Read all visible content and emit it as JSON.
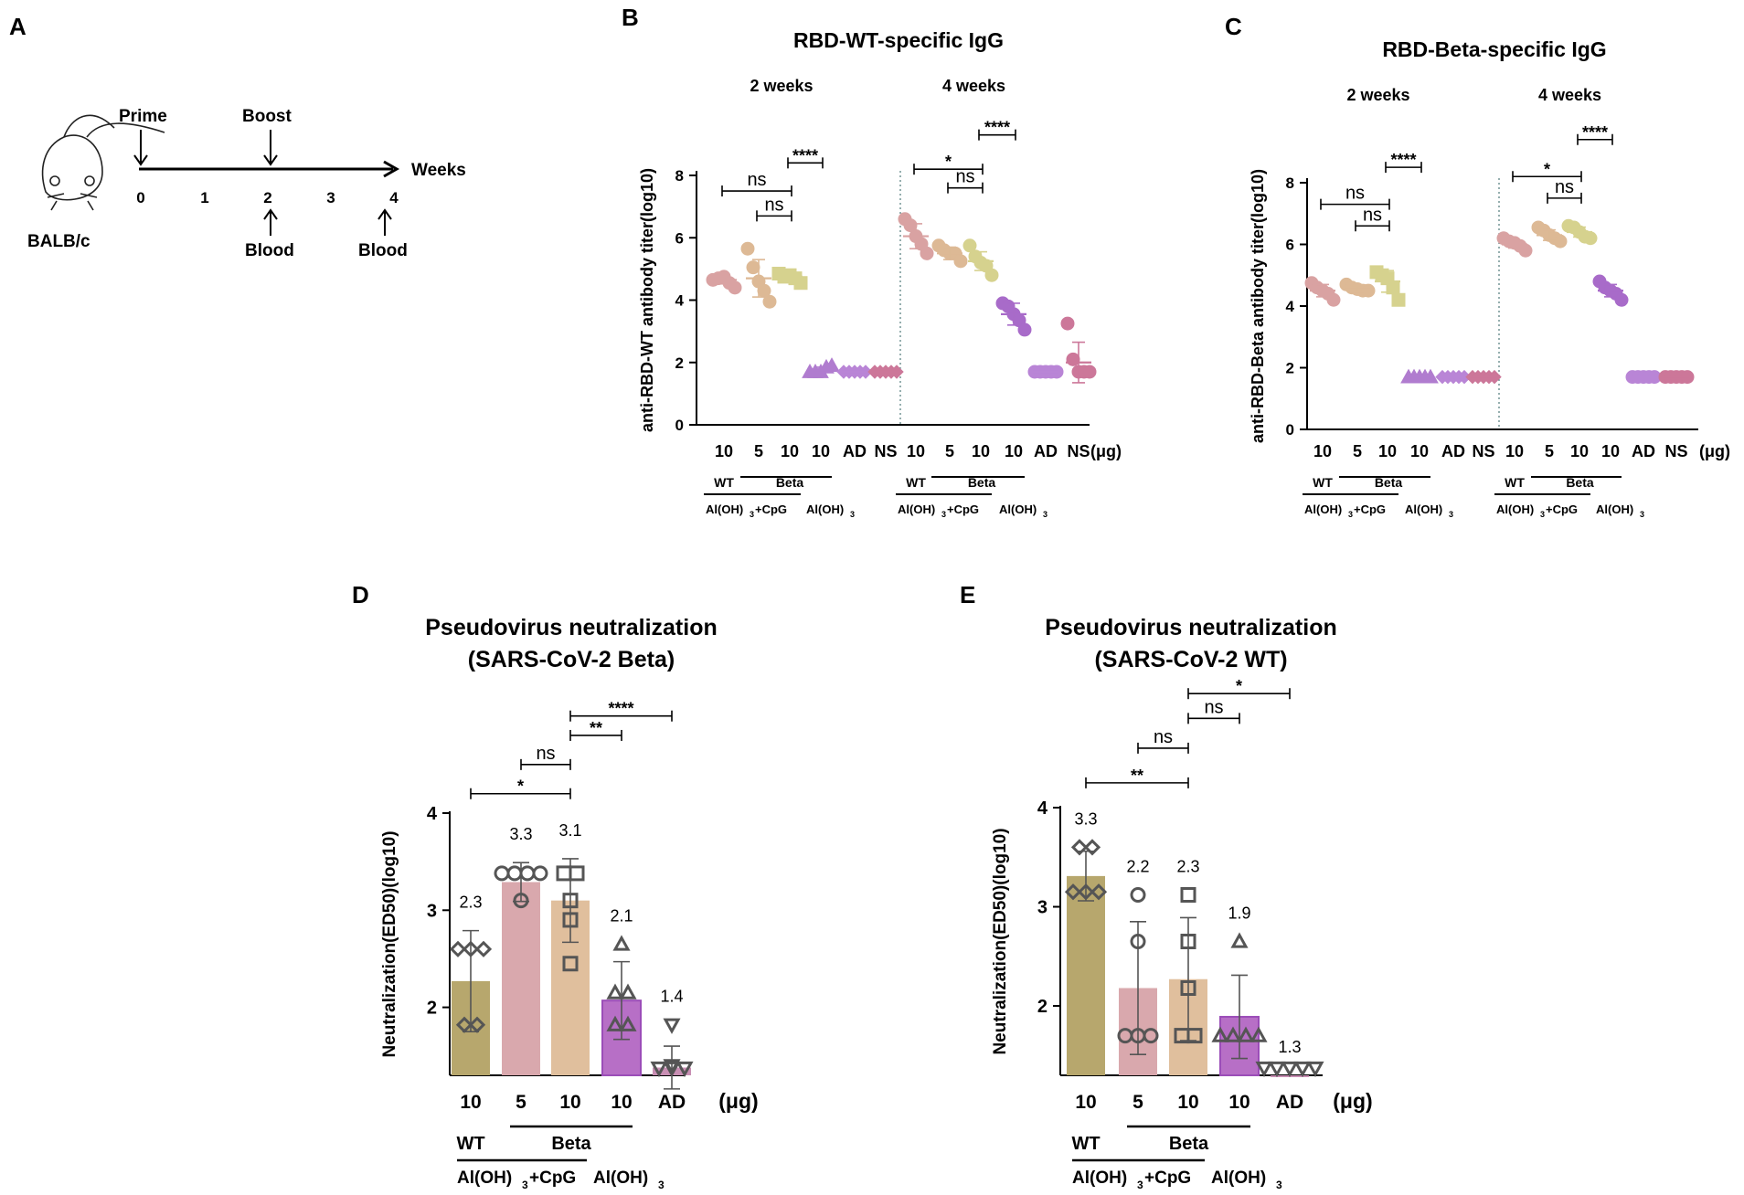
{
  "panels": {
    "A": {
      "letter": "A",
      "strain": "BALB/c",
      "prime": "Prime",
      "boost": "Boost",
      "axis_label": "Weeks",
      "ticks": [
        "0",
        "1",
        "2",
        "3",
        "4"
      ],
      "blood": "Blood"
    }
  },
  "chart_data": [
    {
      "panel": "B",
      "type": "scatter",
      "title": "RBD-WT-specific IgG",
      "ylabel": "anti-RBD-WT antibody titer(log10)",
      "ylim": [
        0,
        8
      ],
      "yticks": [
        "0",
        "2",
        "4",
        "6",
        "8"
      ],
      "unit": "(μg)",
      "groups": [
        {
          "name": "2 weeks",
          "doses": [
            "10",
            "5",
            "10",
            "10",
            "AD",
            "NS"
          ],
          "labels": {
            "wt": "WT",
            "beta": "Beta",
            "adj1": "Al(OH)",
            "adj1b": "+CpG",
            "adj2": "Al(OH)"
          },
          "series": [
            {
              "name": "WT 10 Al(OH)3+CpG",
              "color": "#d9a2a2",
              "marker": "circle",
              "points": [
                4.65,
                4.7,
                4.75,
                4.55,
                4.4
              ],
              "mean": 4.65,
              "sd": 0.13
            },
            {
              "name": "Beta 5 Al(OH)3+CpG",
              "color": "#ddb995",
              "marker": "circle",
              "points": [
                5.65,
                5.05,
                4.6,
                4.3,
                3.95
              ],
              "mean": 4.7,
              "sd": 0.6
            },
            {
              "name": "Beta 10 Al(OH)3+CpG",
              "color": "#d6d28e",
              "marker": "square",
              "points": [
                4.85,
                4.75,
                4.8,
                4.7,
                4.55
              ],
              "mean": 4.75,
              "sd": 0.12
            },
            {
              "name": "Beta 10 Al(OH)3",
              "color": "#b07ccf",
              "marker": "triangle",
              "points": [
                1.7,
                1.7,
                1.7,
                1.85,
                1.9
              ],
              "mean": 1.77,
              "sd": 0.08
            },
            {
              "name": "AD",
              "color": "#b985d6",
              "marker": "diamond",
              "points": [
                1.7,
                1.7,
                1.7,
                1.7,
                1.7
              ],
              "mean": 1.7,
              "sd": 0
            },
            {
              "name": "NS",
              "color": "#cc7799",
              "marker": "diamond",
              "points": [
                1.7,
                1.7,
                1.7,
                1.7,
                1.7
              ],
              "mean": 1.7,
              "sd": 0
            }
          ],
          "sig": [
            {
              "text": "ns",
              "from": 0,
              "to": 2,
              "y": 7.5
            },
            {
              "text": "ns",
              "from": 1,
              "to": 2,
              "y": 6.7
            },
            {
              "text": "****",
              "from": 2,
              "to": 3,
              "y": 8.4
            }
          ]
        },
        {
          "name": "4 weeks",
          "doses": [
            "10",
            "5",
            "10",
            "10",
            "AD",
            "NS"
          ],
          "labels": {
            "wt": "WT",
            "beta": "Beta",
            "adj1": "Al(OH)",
            "adj1b": "+CpG",
            "adj2": "Al(OH)"
          },
          "series": [
            {
              "name": "WT 10 Al(OH)3+CpG",
              "color": "#d9a2a2",
              "marker": "circle",
              "points": [
                6.6,
                6.4,
                6.05,
                5.8,
                5.5
              ],
              "mean": 6.05,
              "sd": 0.4
            },
            {
              "name": "Beta 5 Al(OH)3+CpG",
              "color": "#ddb995",
              "marker": "circle",
              "points": [
                5.75,
                5.6,
                5.5,
                5.5,
                5.25
              ],
              "mean": 5.5,
              "sd": 0.2
            },
            {
              "name": "Beta 10 Al(OH)3+CpG",
              "color": "#d6d28e",
              "marker": "circle",
              "points": [
                5.75,
                5.4,
                5.2,
                5.1,
                4.8
              ],
              "mean": 5.25,
              "sd": 0.3
            },
            {
              "name": "Beta 10 Al(OH)3",
              "color": "#a86bc9",
              "marker": "circle",
              "points": [
                3.9,
                3.8,
                3.55,
                3.35,
                3.05
              ],
              "mean": 3.55,
              "sd": 0.35
            },
            {
              "name": "AD",
              "color": "#b985d6",
              "marker": "circle",
              "points": [
                1.7,
                1.7,
                1.7,
                1.7,
                1.7
              ],
              "mean": 1.7,
              "sd": 0
            },
            {
              "name": "NS",
              "color": "#cc7799",
              "marker": "circle",
              "points": [
                3.25,
                2.1,
                1.7,
                1.7,
                1.7
              ],
              "mean": 2.0,
              "sd": 0.65
            }
          ],
          "sig": [
            {
              "text": "*",
              "from": 0,
              "to": 2,
              "y": 8.2
            },
            {
              "text": "ns",
              "from": 1,
              "to": 2,
              "y": 7.6
            },
            {
              "text": "****",
              "from": 2,
              "to": 3,
              "y": 9.3
            }
          ]
        }
      ]
    },
    {
      "panel": "C",
      "type": "scatter",
      "title": "RBD-Beta-specific IgG",
      "ylabel": "anti-RBD-Beta antibody titer(log10)",
      "ylim": [
        0,
        8
      ],
      "yticks": [
        "0",
        "2",
        "4",
        "6",
        "8"
      ],
      "unit": "(μg)",
      "groups": [
        {
          "name": "2 weeks",
          "doses": [
            "10",
            "5",
            "10",
            "10",
            "AD",
            "NS"
          ],
          "labels": {
            "wt": "WT",
            "beta": "Beta",
            "adj1": "Al(OH)",
            "adj1b": "+CpG",
            "adj2": "Al(OH)"
          },
          "series": [
            {
              "name": "WT 10 Al(OH)3+CpG",
              "color": "#d9a2a2",
              "marker": "circle",
              "points": [
                4.75,
                4.6,
                4.5,
                4.4,
                4.2
              ],
              "mean": 4.5,
              "sd": 0.2
            },
            {
              "name": "Beta 5 Al(OH)3+CpG",
              "color": "#ddb995",
              "marker": "circle",
              "points": [
                4.7,
                4.6,
                4.55,
                4.5,
                4.5
              ],
              "mean": 4.55,
              "sd": 0.1
            },
            {
              "name": "Beta 10 Al(OH)3+CpG",
              "color": "#d6d28e",
              "marker": "square",
              "points": [
                5.1,
                5.0,
                4.9,
                4.6,
                4.2
              ],
              "mean": 4.8,
              "sd": 0.35
            },
            {
              "name": "Beta 10 Al(OH)3",
              "color": "#b07ccf",
              "marker": "triangle",
              "points": [
                1.7,
                1.7,
                1.7,
                1.7,
                1.7
              ],
              "mean": 1.7,
              "sd": 0
            },
            {
              "name": "AD",
              "color": "#b985d6",
              "marker": "diamond",
              "points": [
                1.7,
                1.7,
                1.7,
                1.7,
                1.7
              ],
              "mean": 1.7,
              "sd": 0
            },
            {
              "name": "NS",
              "color": "#cc7799",
              "marker": "diamond",
              "points": [
                1.7,
                1.7,
                1.7,
                1.7,
                1.7
              ],
              "mean": 1.7,
              "sd": 0
            }
          ],
          "sig": [
            {
              "text": "ns",
              "from": 0,
              "to": 2,
              "y": 7.3
            },
            {
              "text": "ns",
              "from": 1,
              "to": 2,
              "y": 6.6
            },
            {
              "text": "****",
              "from": 2,
              "to": 3,
              "y": 8.5
            }
          ]
        },
        {
          "name": "4 weeks",
          "doses": [
            "10",
            "5",
            "10",
            "10",
            "AD",
            "NS"
          ],
          "labels": {
            "wt": "WT",
            "beta": "Beta",
            "adj1": "Al(OH)",
            "adj1b": "+CpG",
            "adj2": "Al(OH)"
          },
          "series": [
            {
              "name": "WT 10 Al(OH)3+CpG",
              "color": "#d9a2a2",
              "marker": "circle",
              "points": [
                6.2,
                6.1,
                6.05,
                5.95,
                5.8
              ],
              "mean": 6.0,
              "sd": 0.12
            },
            {
              "name": "Beta 5 Al(OH)3+CpG",
              "color": "#ddb995",
              "marker": "circle",
              "points": [
                6.55,
                6.45,
                6.3,
                6.2,
                6.1
              ],
              "mean": 6.3,
              "sd": 0.17
            },
            {
              "name": "Beta 10 Al(OH)3+CpG",
              "color": "#d6d28e",
              "marker": "circle",
              "points": [
                6.6,
                6.55,
                6.4,
                6.25,
                6.2
              ],
              "mean": 6.4,
              "sd": 0.16
            },
            {
              "name": "Beta 10 Al(OH)3",
              "color": "#a86bc9",
              "marker": "circle",
              "points": [
                4.8,
                4.6,
                4.5,
                4.4,
                4.2
              ],
              "mean": 4.5,
              "sd": 0.2
            },
            {
              "name": "AD",
              "color": "#b985d6",
              "marker": "circle",
              "points": [
                1.7,
                1.7,
                1.7,
                1.7,
                1.7
              ],
              "mean": 1.7,
              "sd": 0
            },
            {
              "name": "NS",
              "color": "#cc7799",
              "marker": "circle",
              "points": [
                1.7,
                1.7,
                1.7,
                1.7,
                1.7
              ],
              "mean": 1.7,
              "sd": 0
            }
          ],
          "sig": [
            {
              "text": "*",
              "from": 0,
              "to": 2,
              "y": 8.2
            },
            {
              "text": "ns",
              "from": 1,
              "to": 2,
              "y": 7.5
            },
            {
              "text": "****",
              "from": 2,
              "to": 3,
              "y": 9.4
            }
          ]
        }
      ]
    },
    {
      "panel": "D",
      "type": "bar",
      "title": "Pseudovirus neutralization",
      "subtitle": "(SARS-CoV-2 Beta)",
      "ylabel": "Neutralization(ED50)(log10)",
      "ylim": [
        1.3,
        4
      ],
      "yticks": [
        "2",
        "3",
        "4"
      ],
      "unit": "(μg)",
      "categories": [
        "10",
        "5",
        "10",
        "10",
        "AD"
      ],
      "labels": {
        "wt": "WT",
        "beta": "Beta",
        "adj1": "Al(OH)",
        "adj1b": "+CpG",
        "adj2": "Al(OH)"
      },
      "bars": [
        {
          "mean": 2.27,
          "label": "2.3",
          "sd": 0.52,
          "color": "#b7a76d",
          "marker": "diamond",
          "points": [
            2.6,
            2.6,
            2.6,
            1.82,
            1.82
          ]
        },
        {
          "mean": 3.29,
          "label": "3.3",
          "sd": 0.2,
          "color": "#d9a8ad",
          "marker": "circle",
          "points": [
            3.38,
            3.38,
            3.38,
            3.38,
            3.1
          ]
        },
        {
          "mean": 3.1,
          "label": "3.1",
          "sd": 0.43,
          "color": "#e0bf9d",
          "marker": "square",
          "points": [
            3.38,
            3.38,
            3.1,
            2.9,
            2.45
          ]
        },
        {
          "mean": 2.07,
          "label": "2.1",
          "sd": 0.4,
          "color": "#b76fc6",
          "marker": "triangle",
          "points": [
            2.65,
            2.15,
            2.15,
            1.82,
            1.82
          ]
        },
        {
          "mean": 1.38,
          "label": "1.4",
          "sd": 0.22,
          "color": "#c88eb3",
          "marker": "tridown",
          "points": [
            1.82,
            1.4,
            1.3,
            1.3,
            1.3
          ]
        }
      ],
      "sig": [
        {
          "text": "*",
          "from": 0,
          "to": 2,
          "y": 4.2
        },
        {
          "text": "ns",
          "from": 1,
          "to": 2,
          "y": 4.5
        },
        {
          "text": "**",
          "from": 2,
          "to": 3,
          "y": 4.8
        },
        {
          "text": "****",
          "from": 2,
          "to": 4,
          "y": 5.0
        }
      ]
    },
    {
      "panel": "E",
      "type": "bar",
      "title": "Pseudovirus neutralization",
      "subtitle": "(SARS-CoV-2 WT)",
      "ylabel": "Neutralization(ED50)(log10)",
      "ylim": [
        1.3,
        4
      ],
      "yticks": [
        "2",
        "3",
        "4"
      ],
      "unit": "(μg)",
      "categories": [
        "10",
        "5",
        "10",
        "10",
        "AD"
      ],
      "labels": {
        "wt": "WT",
        "beta": "Beta",
        "adj1": "Al(OH)",
        "adj1b": "+CpG",
        "adj2": "Al(OH)"
      },
      "bars": [
        {
          "mean": 3.31,
          "label": "3.3",
          "sd": 0.25,
          "color": "#b7a76d",
          "marker": "diamond",
          "points": [
            3.6,
            3.6,
            3.15,
            3.15,
            3.15
          ]
        },
        {
          "mean": 2.18,
          "label": "2.2",
          "sd": 0.67,
          "color": "#d9a8ad",
          "marker": "circle",
          "points": [
            3.12,
            2.65,
            1.7,
            1.7,
            1.7
          ]
        },
        {
          "mean": 2.27,
          "label": "2.3",
          "sd": 0.62,
          "color": "#e0bf9d",
          "marker": "square",
          "points": [
            3.12,
            2.65,
            2.18,
            1.7,
            1.7
          ]
        },
        {
          "mean": 1.89,
          "label": "1.9",
          "sd": 0.42,
          "color": "#b76fc6",
          "marker": "triangle",
          "points": [
            2.65,
            1.7,
            1.7,
            1.7,
            1.7
          ]
        },
        {
          "mean": 1.3,
          "label": "1.3",
          "sd": 0,
          "color": "#c88eb3",
          "marker": "tridown",
          "points": [
            1.3,
            1.3,
            1.3,
            1.3,
            1.3
          ]
        }
      ],
      "sig": [
        {
          "text": "**",
          "from": 0,
          "to": 2,
          "y": 4.25
        },
        {
          "text": "ns",
          "from": 1,
          "to": 2,
          "y": 4.6
        },
        {
          "text": "ns",
          "from": 2,
          "to": 3,
          "y": 4.9
        },
        {
          "text": "*",
          "from": 2,
          "to": 4,
          "y": 5.15
        }
      ]
    }
  ]
}
